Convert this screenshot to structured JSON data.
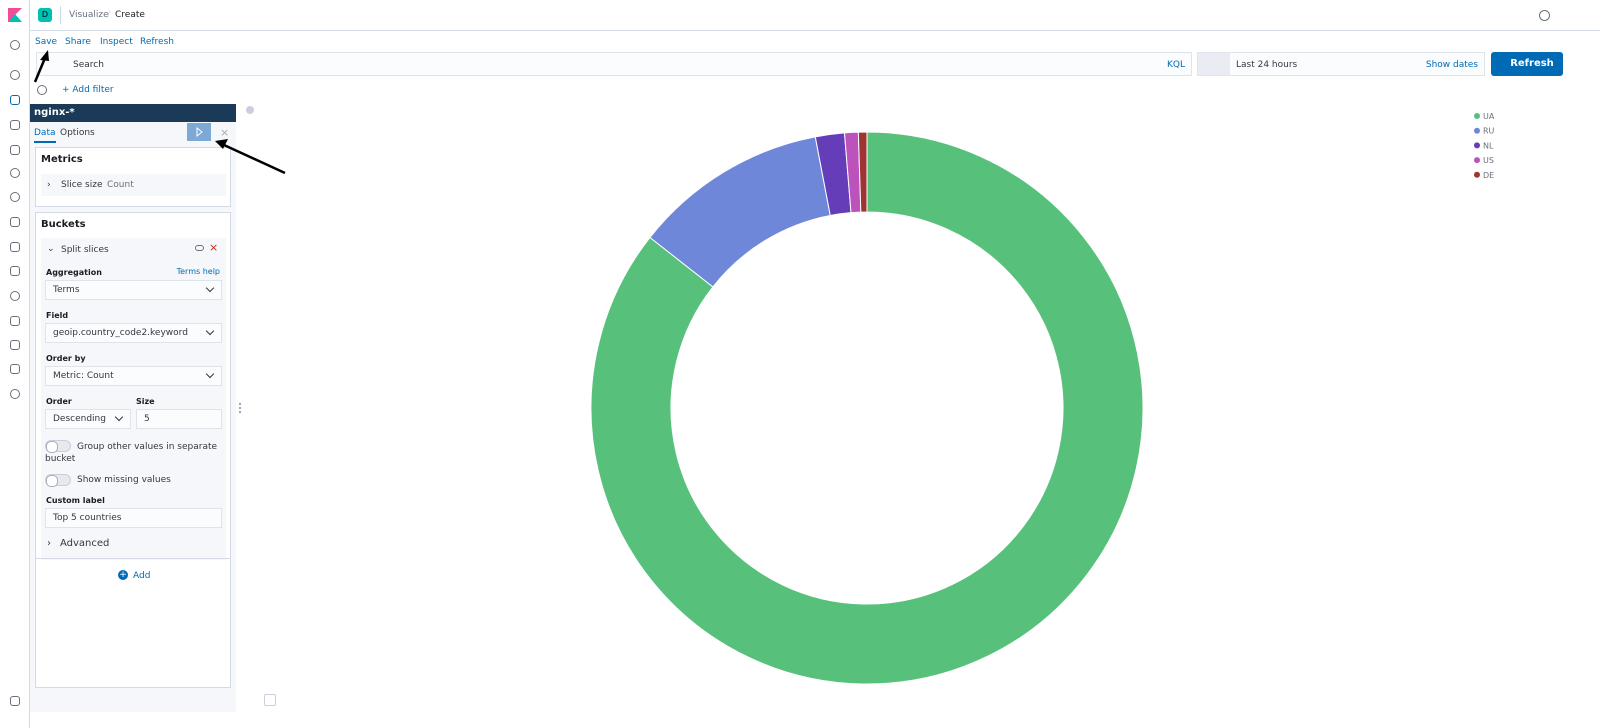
{
  "space_badge": "D",
  "breadcrumbs": [
    "Visualize",
    "Create"
  ],
  "top_menu": [
    "Save",
    "Share",
    "Inspect",
    "Refresh"
  ],
  "search": {
    "placeholder": "Search",
    "language": "KQL",
    "time": "Last 24 hours",
    "show_dates": "Show dates",
    "refresh": "Refresh"
  },
  "add_filter": "+ Add filter",
  "editor": {
    "index_pattern": "nginx-*",
    "tabs": [
      "Data",
      "Options"
    ],
    "metrics": {
      "title": "Metrics",
      "item_label": "Slice size",
      "item_value": "Count"
    },
    "buckets": {
      "title": "Buckets",
      "split": "Split slices",
      "aggregation_label": "Aggregation",
      "terms_help": "Terms help",
      "aggregation": "Terms",
      "field_label": "Field",
      "field": "geoip.country_code2.keyword",
      "order_by_label": "Order by",
      "order_by": "Metric: Count",
      "order_label": "Order",
      "order": "Descending",
      "size_label": "Size",
      "size": 5,
      "group_other": "Group other values in separate bucket",
      "show_missing": "Show missing values",
      "custom_label_label": "Custom label",
      "custom_label": "Top 5 countries",
      "advanced": "Advanced",
      "add": "Add"
    }
  },
  "chart_data": {
    "type": "pie",
    "donut": true,
    "categories": [
      "UA",
      "RU",
      "NL",
      "US",
      "DE"
    ],
    "values": [
      85.6,
      11.4,
      1.7,
      0.8,
      0.5
    ],
    "colors": [
      "#57c17b",
      "#6f87d8",
      "#663db8",
      "#bc52bc",
      "#9e3533"
    ],
    "legend": "top-right"
  }
}
